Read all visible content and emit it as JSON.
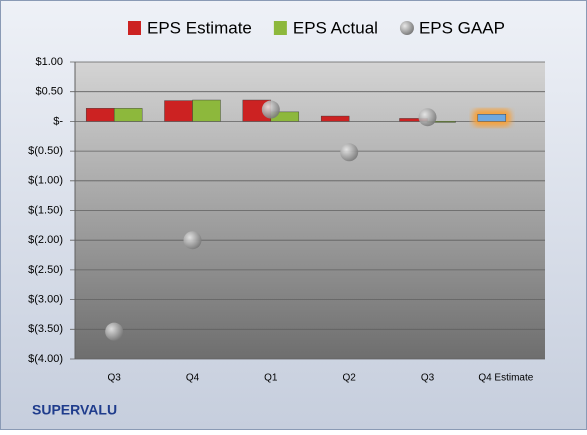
{
  "chart_data": {
    "type": "bar",
    "categories": [
      "Q3",
      "Q4",
      "Q1",
      "Q2",
      "Q3",
      "Q4 Estimate"
    ],
    "series": [
      {
        "name": "EPS Estimate",
        "color": "#cc2222",
        "colors": [
          "#cc2222",
          "#cc2222",
          "#cc2222",
          "#cc2222",
          "#cc2222",
          "#6fa8e0"
        ],
        "values": [
          0.22,
          0.35,
          0.36,
          0.09,
          0.05,
          0.12
        ]
      },
      {
        "name": "EPS Actual",
        "color": "#8db83c",
        "values": [
          0.22,
          0.36,
          0.16,
          null,
          -0.01,
          null
        ]
      },
      {
        "name": "EPS GAAP",
        "color": "#a0a0a0",
        "marker": "circle",
        "values": [
          -3.54,
          -2.0,
          0.2,
          -0.52,
          0.07,
          null
        ]
      }
    ],
    "ylim": [
      -4,
      1
    ],
    "yticks": [
      {
        "value": 1,
        "label": "$1.00"
      },
      {
        "value": 0.5,
        "label": "$0.50"
      },
      {
        "value": 0,
        "label": "$-"
      },
      {
        "value": -0.5,
        "label": "$(0.50)"
      },
      {
        "value": -1,
        "label": "$(1.00)"
      },
      {
        "value": -1.5,
        "label": "$(1.50)"
      },
      {
        "value": -2,
        "label": "$(2.00)"
      },
      {
        "value": -2.5,
        "label": "$(2.50)"
      },
      {
        "value": -3,
        "label": "$(3.00)"
      },
      {
        "value": -3.5,
        "label": "$(3.50)"
      },
      {
        "value": -4,
        "label": "$(4.00)"
      }
    ],
    "grid": true,
    "legend": "top",
    "footer": "SUPERVALU"
  }
}
